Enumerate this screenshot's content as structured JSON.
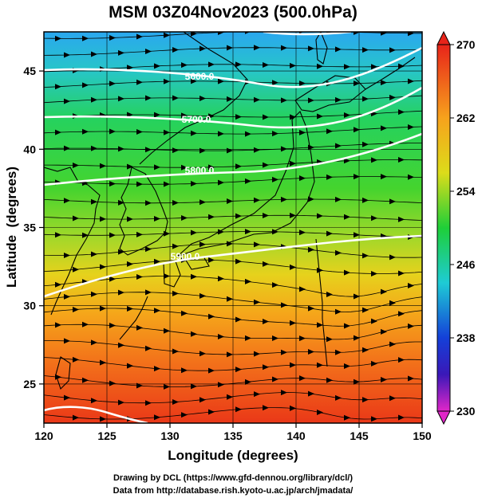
{
  "title": "MSM 03Z04Nov2023 (500.0hPa)",
  "xaxis": {
    "label": "Longitude (degrees)",
    "min": 120,
    "max": 150,
    "ticks": [
      120,
      125,
      130,
      135,
      140,
      145,
      150
    ]
  },
  "yaxis": {
    "label": "Latitude  (degrees)",
    "min": 22.5,
    "max": 47.5,
    "ticks": [
      25,
      30,
      35,
      40,
      45
    ]
  },
  "colorbar": {
    "min": 230,
    "max": 270,
    "tick_labels": [
      "270",
      "262",
      "254",
      "246",
      "238",
      "230"
    ]
  },
  "contours": [
    {
      "value": 5600,
      "label": "5600.0"
    },
    {
      "value": 5700,
      "label": "5700.0"
    },
    {
      "value": 5800,
      "label": "5800.0"
    },
    {
      "value": 5900,
      "label": "5900.0"
    }
  ],
  "footer": {
    "line1": "Drawing by DCL (https://www.gfd-dennou.org/library/dcl/)",
    "line2": "Data from http://database.rish.kyoto-u.ac.jp/arch/jmadata/"
  },
  "colors": {
    "cold": "#1e7be0",
    "mid": "#2ecc2e",
    "warm": "#ee3a1a",
    "contour": "#ffffff",
    "streamline": "#000000"
  }
}
